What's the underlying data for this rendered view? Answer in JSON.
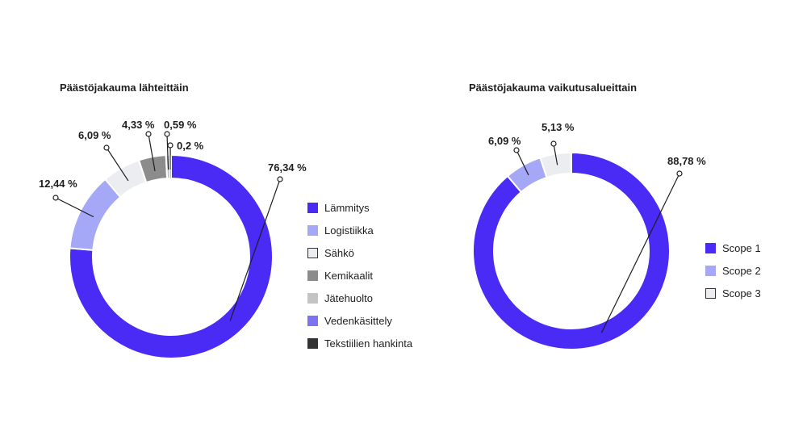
{
  "chart_data": [
    {
      "type": "pie",
      "title": "Päästöjakauma lähteittäin",
      "categories": [
        "Lämmitys",
        "Logistiikka",
        "Sähkö",
        "Kemikaalit",
        "Jätehuolto",
        "Vedenkäsittely",
        "Tekstiilien hankinta"
      ],
      "values": [
        76.34,
        12.44,
        6.09,
        4.33,
        0.59,
        0.2,
        0.01
      ],
      "value_labels": [
        "76,34 %",
        "12,44 %",
        "6,09 %",
        "4,33 %",
        "0,59 %",
        "0,2 %",
        ""
      ],
      "colors": [
        "#4a2af5",
        "#a5a8f7",
        "#ebedf0",
        "#8c8c8c",
        "#c4c4c4",
        "#7b73f2",
        "#333333"
      ],
      "legend_position": "right",
      "donut": true
    },
    {
      "type": "pie",
      "title": "Päästöjakauma vaikutusalueittain",
      "categories": [
        "Scope 1",
        "Scope 2",
        "Scope 3"
      ],
      "values": [
        88.78,
        6.09,
        5.13
      ],
      "value_labels": [
        "88,78 %",
        "6,09 %",
        "5,13 %"
      ],
      "colors": [
        "#4a2af5",
        "#a5a8f7",
        "#ebedf0"
      ],
      "legend_position": "right",
      "donut": true
    }
  ]
}
